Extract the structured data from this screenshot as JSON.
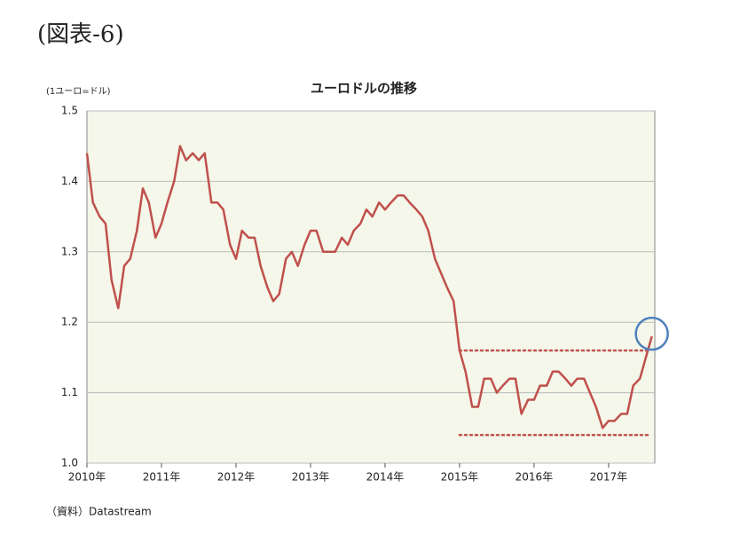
{
  "header": "(図表-6)",
  "source": "（資料）Datastream",
  "chart_data": {
    "type": "line",
    "title": "ユーロドルの推移",
    "y_label": "(1ユーロ=ドル)",
    "xlim": [
      2010,
      2017.62
    ],
    "ylim": [
      1.0,
      1.5
    ],
    "xticks": [
      {
        "value": 2010,
        "label": "2010年"
      },
      {
        "value": 2011,
        "label": "2011年"
      },
      {
        "value": 2012,
        "label": "2012年"
      },
      {
        "value": 2013,
        "label": "2013年"
      },
      {
        "value": 2014,
        "label": "2014年"
      },
      {
        "value": 2015,
        "label": "2015年"
      },
      {
        "value": 2016,
        "label": "2016年"
      },
      {
        "value": 2017,
        "label": "2017年"
      }
    ],
    "yticks": [
      {
        "value": 1.0,
        "label": "1.0"
      },
      1.1,
      1.2,
      1.3,
      1.4,
      1.5
    ],
    "grid": true,
    "x": [
      2010.0,
      2010.08,
      2010.17,
      2010.25,
      2010.33,
      2010.42,
      2010.5,
      2010.58,
      2010.67,
      2010.75,
      2010.83,
      2010.92,
      2011.0,
      2011.08,
      2011.17,
      2011.25,
      2011.33,
      2011.42,
      2011.5,
      2011.58,
      2011.67,
      2011.75,
      2011.83,
      2011.92,
      2012.0,
      2012.08,
      2012.17,
      2012.25,
      2012.33,
      2012.42,
      2012.5,
      2012.58,
      2012.67,
      2012.75,
      2012.83,
      2012.92,
      2013.0,
      2013.08,
      2013.17,
      2013.25,
      2013.33,
      2013.42,
      2013.5,
      2013.58,
      2013.67,
      2013.75,
      2013.83,
      2013.92,
      2014.0,
      2014.08,
      2014.17,
      2014.25,
      2014.33,
      2014.42,
      2014.5,
      2014.58,
      2014.67,
      2014.75,
      2014.83,
      2014.92,
      2015.0,
      2015.08,
      2015.17,
      2015.25,
      2015.33,
      2015.42,
      2015.5,
      2015.58,
      2015.67,
      2015.75,
      2015.83,
      2015.92,
      2016.0,
      2016.08,
      2016.17,
      2016.25,
      2016.33,
      2016.42,
      2016.5,
      2016.58,
      2016.67,
      2016.75,
      2016.83,
      2016.92,
      2017.0,
      2017.08,
      2017.17,
      2017.25,
      2017.33,
      2017.42,
      2017.5,
      2017.58
    ],
    "series": [
      {
        "name": "ユーロドル",
        "color": "#c0504d",
        "values": [
          1.44,
          1.37,
          1.35,
          1.34,
          1.26,
          1.22,
          1.28,
          1.29,
          1.33,
          1.39,
          1.37,
          1.32,
          1.34,
          1.37,
          1.4,
          1.45,
          1.43,
          1.44,
          1.43,
          1.44,
          1.37,
          1.37,
          1.36,
          1.31,
          1.29,
          1.33,
          1.32,
          1.32,
          1.28,
          1.25,
          1.23,
          1.24,
          1.29,
          1.3,
          1.28,
          1.31,
          1.33,
          1.33,
          1.3,
          1.3,
          1.3,
          1.32,
          1.31,
          1.33,
          1.34,
          1.36,
          1.35,
          1.37,
          1.36,
          1.37,
          1.38,
          1.38,
          1.37,
          1.36,
          1.35,
          1.33,
          1.29,
          1.27,
          1.25,
          1.23,
          1.16,
          1.13,
          1.08,
          1.08,
          1.12,
          1.12,
          1.1,
          1.11,
          1.12,
          1.12,
          1.07,
          1.09,
          1.09,
          1.11,
          1.11,
          1.13,
          1.13,
          1.12,
          1.11,
          1.12,
          1.12,
          1.1,
          1.08,
          1.05,
          1.06,
          1.06,
          1.07,
          1.07,
          1.11,
          1.12,
          1.15,
          1.18
        ]
      }
    ],
    "reference_lines": [
      {
        "y": 1.16,
        "x": [
          2015,
          2017.55
        ],
        "color": "#c0504d"
      },
      {
        "y": 1.04,
        "x": [
          2015,
          2017.55
        ],
        "color": "#c0504d"
      }
    ]
  }
}
